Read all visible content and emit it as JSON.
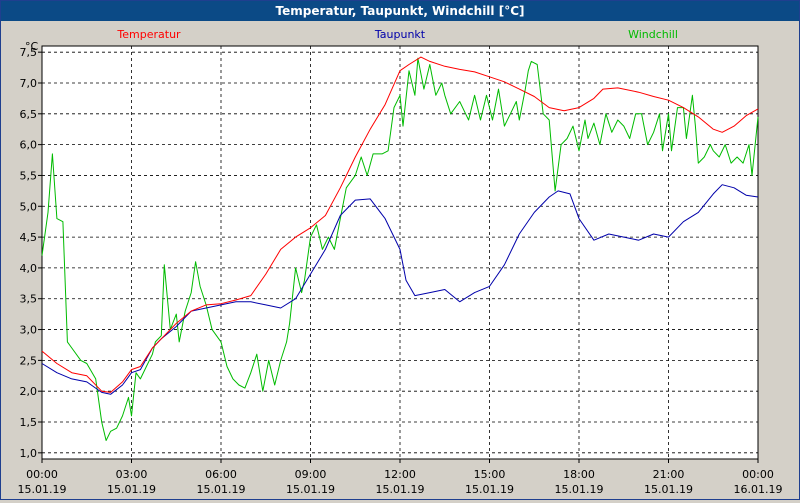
{
  "window_title": "Temperatur, Taupunkt, Windchill [°C]",
  "chart_data": {
    "type": "line",
    "title": "Temperatur, Taupunkt, Windchill [°C]",
    "ylabel": "°C",
    "ylim": [
      0.9,
      7.6
    ],
    "yticks": [
      "1,0",
      "1,5",
      "2,0",
      "2,5",
      "3,0",
      "3,5",
      "4,0",
      "4,5",
      "5,0",
      "5,5",
      "6,0",
      "6,5",
      "7,0",
      "7,5"
    ],
    "ytick_values": [
      1.0,
      1.5,
      2.0,
      2.5,
      3.0,
      3.5,
      4.0,
      4.5,
      5.0,
      5.5,
      6.0,
      6.5,
      7.0,
      7.5
    ],
    "xticks": [
      {
        "time": "00:00",
        "date": "15.01.19",
        "h": 0
      },
      {
        "time": "03:00",
        "date": "15.01.19",
        "h": 3
      },
      {
        "time": "06:00",
        "date": "15.01.19",
        "h": 6
      },
      {
        "time": "09:00",
        "date": "15.01.19",
        "h": 9
      },
      {
        "time": "12:00",
        "date": "15.01.19",
        "h": 12
      },
      {
        "time": "15:00",
        "date": "15.01.19",
        "h": 15
      },
      {
        "time": "18:00",
        "date": "15.01.19",
        "h": 18
      },
      {
        "time": "21:00",
        "date": "15.01.19",
        "h": 21
      },
      {
        "time": "00:00",
        "date": "16.01.19",
        "h": 24
      }
    ],
    "grid": true,
    "legend": "top",
    "series": [
      {
        "name": "Temperatur",
        "color": "#ff0000",
        "points": [
          [
            0,
            2.65
          ],
          [
            0.5,
            2.45
          ],
          [
            1,
            2.3
          ],
          [
            1.5,
            2.25
          ],
          [
            2,
            2.0
          ],
          [
            2.3,
            1.98
          ],
          [
            2.7,
            2.15
          ],
          [
            3,
            2.35
          ],
          [
            3.3,
            2.4
          ],
          [
            3.7,
            2.7
          ],
          [
            4,
            2.85
          ],
          [
            4.5,
            3.1
          ],
          [
            5,
            3.3
          ],
          [
            5.5,
            3.4
          ],
          [
            6,
            3.42
          ],
          [
            6.5,
            3.48
          ],
          [
            7,
            3.55
          ],
          [
            7.5,
            3.9
          ],
          [
            8,
            4.3
          ],
          [
            8.5,
            4.5
          ],
          [
            9,
            4.65
          ],
          [
            9.5,
            4.85
          ],
          [
            10,
            5.3
          ],
          [
            10.5,
            5.8
          ],
          [
            11,
            6.25
          ],
          [
            11.5,
            6.65
          ],
          [
            12,
            7.2
          ],
          [
            12.3,
            7.3
          ],
          [
            12.7,
            7.42
          ],
          [
            13,
            7.35
          ],
          [
            13.5,
            7.27
          ],
          [
            14,
            7.22
          ],
          [
            14.5,
            7.18
          ],
          [
            15,
            7.1
          ],
          [
            15.5,
            7.02
          ],
          [
            16,
            6.9
          ],
          [
            16.5,
            6.78
          ],
          [
            17,
            6.6
          ],
          [
            17.5,
            6.55
          ],
          [
            18,
            6.6
          ],
          [
            18.5,
            6.75
          ],
          [
            18.8,
            6.9
          ],
          [
            19.3,
            6.92
          ],
          [
            20,
            6.85
          ],
          [
            20.5,
            6.78
          ],
          [
            21,
            6.72
          ],
          [
            21.5,
            6.6
          ],
          [
            22,
            6.45
          ],
          [
            22.5,
            6.25
          ],
          [
            22.8,
            6.2
          ],
          [
            23.2,
            6.3
          ],
          [
            23.6,
            6.47
          ],
          [
            24,
            6.58
          ]
        ]
      },
      {
        "name": "Taupunkt",
        "color": "#0000aa",
        "points": [
          [
            0,
            2.45
          ],
          [
            0.5,
            2.3
          ],
          [
            1,
            2.2
          ],
          [
            1.5,
            2.15
          ],
          [
            2,
            1.98
          ],
          [
            2.3,
            1.95
          ],
          [
            2.7,
            2.1
          ],
          [
            3,
            2.3
          ],
          [
            3.3,
            2.35
          ],
          [
            3.7,
            2.7
          ],
          [
            4,
            2.85
          ],
          [
            4.5,
            3.05
          ],
          [
            5,
            3.3
          ],
          [
            5.5,
            3.35
          ],
          [
            6,
            3.4
          ],
          [
            6.5,
            3.45
          ],
          [
            7,
            3.45
          ],
          [
            7.5,
            3.4
          ],
          [
            8,
            3.35
          ],
          [
            8.5,
            3.5
          ],
          [
            9,
            3.9
          ],
          [
            9.5,
            4.3
          ],
          [
            10,
            4.85
          ],
          [
            10.5,
            5.1
          ],
          [
            11,
            5.12
          ],
          [
            11.5,
            4.8
          ],
          [
            12,
            4.3
          ],
          [
            12.2,
            3.8
          ],
          [
            12.5,
            3.55
          ],
          [
            13,
            3.6
          ],
          [
            13.5,
            3.65
          ],
          [
            14,
            3.45
          ],
          [
            14.5,
            3.6
          ],
          [
            15,
            3.7
          ],
          [
            15.5,
            4.05
          ],
          [
            16,
            4.55
          ],
          [
            16.5,
            4.9
          ],
          [
            17,
            5.15
          ],
          [
            17.3,
            5.25
          ],
          [
            17.7,
            5.2
          ],
          [
            18,
            4.8
          ],
          [
            18.5,
            4.45
          ],
          [
            19,
            4.55
          ],
          [
            19.5,
            4.5
          ],
          [
            20,
            4.45
          ],
          [
            20.5,
            4.55
          ],
          [
            21,
            4.5
          ],
          [
            21.5,
            4.75
          ],
          [
            22,
            4.9
          ],
          [
            22.5,
            5.2
          ],
          [
            22.8,
            5.35
          ],
          [
            23.2,
            5.3
          ],
          [
            23.6,
            5.18
          ],
          [
            24,
            5.15
          ]
        ]
      },
      {
        "name": "Windchill",
        "color": "#00bb00",
        "points": [
          [
            0,
            4.2
          ],
          [
            0.2,
            4.9
          ],
          [
            0.35,
            5.85
          ],
          [
            0.5,
            4.8
          ],
          [
            0.7,
            4.75
          ],
          [
            0.85,
            2.8
          ],
          [
            1,
            2.7
          ],
          [
            1.3,
            2.5
          ],
          [
            1.5,
            2.45
          ],
          [
            1.8,
            2.2
          ],
          [
            2,
            1.5
          ],
          [
            2.15,
            1.2
          ],
          [
            2.3,
            1.35
          ],
          [
            2.5,
            1.4
          ],
          [
            2.7,
            1.6
          ],
          [
            2.9,
            1.9
          ],
          [
            3.0,
            1.6
          ],
          [
            3.15,
            2.3
          ],
          [
            3.3,
            2.2
          ],
          [
            3.5,
            2.4
          ],
          [
            3.7,
            2.6
          ],
          [
            3.8,
            2.8
          ],
          [
            4.0,
            2.9
          ],
          [
            4.1,
            4.05
          ],
          [
            4.3,
            3.0
          ],
          [
            4.5,
            3.25
          ],
          [
            4.6,
            2.8
          ],
          [
            4.8,
            3.3
          ],
          [
            5.0,
            3.6
          ],
          [
            5.15,
            4.1
          ],
          [
            5.3,
            3.7
          ],
          [
            5.5,
            3.4
          ],
          [
            5.7,
            3.0
          ],
          [
            6.0,
            2.8
          ],
          [
            6.2,
            2.4
          ],
          [
            6.4,
            2.2
          ],
          [
            6.6,
            2.1
          ],
          [
            6.8,
            2.05
          ],
          [
            7.0,
            2.3
          ],
          [
            7.2,
            2.6
          ],
          [
            7.4,
            2.0
          ],
          [
            7.6,
            2.5
          ],
          [
            7.8,
            2.1
          ],
          [
            8.0,
            2.5
          ],
          [
            8.2,
            2.8
          ],
          [
            8.3,
            3.1
          ],
          [
            8.5,
            4.0
          ],
          [
            8.7,
            3.6
          ],
          [
            8.8,
            3.8
          ],
          [
            9.0,
            4.5
          ],
          [
            9.2,
            4.7
          ],
          [
            9.4,
            4.3
          ],
          [
            9.6,
            4.5
          ],
          [
            9.8,
            4.3
          ],
          [
            10.0,
            4.8
          ],
          [
            10.2,
            5.3
          ],
          [
            10.5,
            5.5
          ],
          [
            10.7,
            5.8
          ],
          [
            10.9,
            5.5
          ],
          [
            11.1,
            5.85
          ],
          [
            11.4,
            5.85
          ],
          [
            11.6,
            5.9
          ],
          [
            11.8,
            6.6
          ],
          [
            12.0,
            6.8
          ],
          [
            12.1,
            6.3
          ],
          [
            12.3,
            7.2
          ],
          [
            12.5,
            6.8
          ],
          [
            12.6,
            7.4
          ],
          [
            12.8,
            6.9
          ],
          [
            13.0,
            7.3
          ],
          [
            13.2,
            6.8
          ],
          [
            13.4,
            7.0
          ],
          [
            13.5,
            6.8
          ],
          [
            13.7,
            6.5
          ],
          [
            14.0,
            6.7
          ],
          [
            14.2,
            6.5
          ],
          [
            14.3,
            6.4
          ],
          [
            14.5,
            6.8
          ],
          [
            14.7,
            6.4
          ],
          [
            14.9,
            6.8
          ],
          [
            15.1,
            6.4
          ],
          [
            15.3,
            6.9
          ],
          [
            15.5,
            6.3
          ],
          [
            15.7,
            6.5
          ],
          [
            15.9,
            6.7
          ],
          [
            16.0,
            6.4
          ],
          [
            16.2,
            6.9
          ],
          [
            16.3,
            7.2
          ],
          [
            16.4,
            7.35
          ],
          [
            16.6,
            7.3
          ],
          [
            16.8,
            6.5
          ],
          [
            17.0,
            6.4
          ],
          [
            17.2,
            5.25
          ],
          [
            17.4,
            6.0
          ],
          [
            17.6,
            6.1
          ],
          [
            17.8,
            6.3
          ],
          [
            18.0,
            5.9
          ],
          [
            18.2,
            6.4
          ],
          [
            18.3,
            6.1
          ],
          [
            18.5,
            6.35
          ],
          [
            18.7,
            6.0
          ],
          [
            18.9,
            6.5
          ],
          [
            19.1,
            6.2
          ],
          [
            19.3,
            6.4
          ],
          [
            19.5,
            6.3
          ],
          [
            19.7,
            6.1
          ],
          [
            19.9,
            6.5
          ],
          [
            20.1,
            6.5
          ],
          [
            20.3,
            6.0
          ],
          [
            20.5,
            6.2
          ],
          [
            20.7,
            6.5
          ],
          [
            20.8,
            5.9
          ],
          [
            21.0,
            6.5
          ],
          [
            21.1,
            5.9
          ],
          [
            21.3,
            6.6
          ],
          [
            21.5,
            6.6
          ],
          [
            21.6,
            6.1
          ],
          [
            21.8,
            6.8
          ],
          [
            21.9,
            6.3
          ],
          [
            22.0,
            5.7
          ],
          [
            22.2,
            5.8
          ],
          [
            22.4,
            6.0
          ],
          [
            22.5,
            5.9
          ],
          [
            22.7,
            5.8
          ],
          [
            22.9,
            6.0
          ],
          [
            23.1,
            5.7
          ],
          [
            23.3,
            5.8
          ],
          [
            23.5,
            5.7
          ],
          [
            23.7,
            6.0
          ],
          [
            23.8,
            5.5
          ],
          [
            24,
            6.45
          ]
        ]
      }
    ]
  }
}
